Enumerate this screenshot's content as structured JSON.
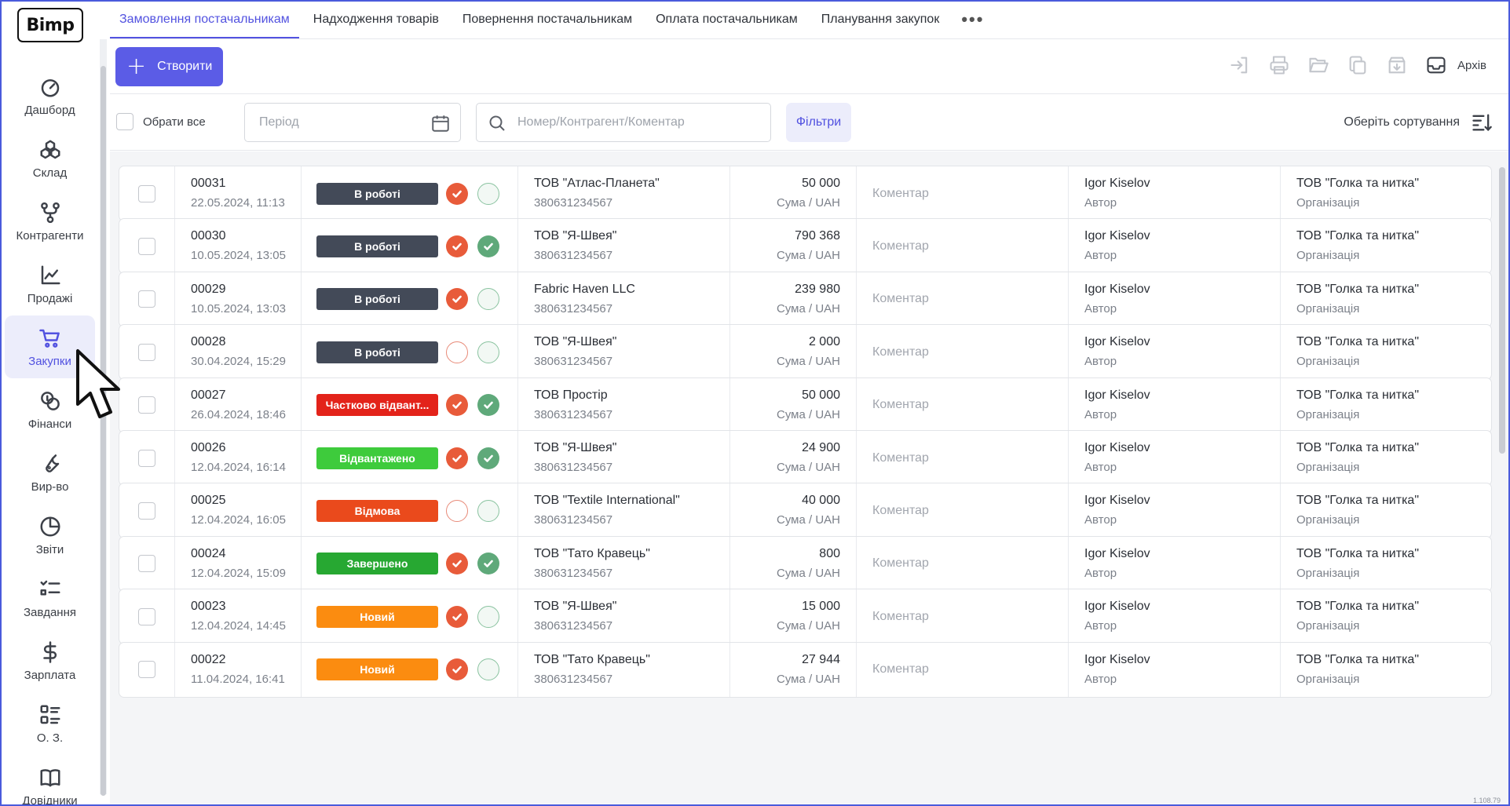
{
  "app": {
    "logo": "Bimp",
    "version": "1.108.79"
  },
  "sidebar": {
    "items": [
      {
        "label": "Дашборд",
        "icon": "gauge-icon",
        "active": false
      },
      {
        "label": "Склад",
        "icon": "boxes-icon",
        "active": false
      },
      {
        "label": "Контрагенти",
        "icon": "network-icon",
        "active": false
      },
      {
        "label": "Продажі",
        "icon": "chart-line-icon",
        "active": false
      },
      {
        "label": "Закупки",
        "icon": "cart-icon",
        "active": true
      },
      {
        "label": "Фінанси",
        "icon": "coins-icon",
        "active": false
      },
      {
        "label": "Вир-во",
        "icon": "wrench-icon",
        "active": false
      },
      {
        "label": "Звіти",
        "icon": "pie-chart-icon",
        "active": false
      },
      {
        "label": "Завдання",
        "icon": "tasks-icon",
        "active": false
      },
      {
        "label": "Зарплата",
        "icon": "dollar-icon",
        "active": false
      },
      {
        "label": "О. З.",
        "icon": "grid-list-icon",
        "active": false
      },
      {
        "label": "Довідники",
        "icon": "book-icon",
        "active": false
      }
    ]
  },
  "tabs": [
    {
      "label": "Замовлення постачальникам",
      "active": true
    },
    {
      "label": "Надходження товарів",
      "active": false
    },
    {
      "label": "Повернення постачальникам",
      "active": false
    },
    {
      "label": "Оплата постачальникам",
      "active": false
    },
    {
      "label": "Планування закупок",
      "active": false
    }
  ],
  "tabs_more": "•••",
  "toolbar": {
    "create_label": "Створити",
    "archive_label": "Архів"
  },
  "filters": {
    "select_all_label": "Обрати все",
    "period_placeholder": "Період",
    "search_placeholder": "Номер/Контрагент/Коментар",
    "filters_label": "Фільтри",
    "sort_label": "Оберіть сортування"
  },
  "labels": {
    "sum_label": "Сума",
    "currency": "UAH",
    "comment_placeholder": "Коментар",
    "author_label": "Автор",
    "org_label": "Організація"
  },
  "colors": {
    "accent": "#5b5ce6",
    "status_in_work": "#434a58",
    "status_partial": "#e3231a",
    "status_shipped": "#3ecb3c",
    "status_refused": "#ea4a1c",
    "status_done": "#27a832",
    "status_new": "#fb8c10"
  },
  "orders": [
    {
      "number": "00031",
      "date": "22.05.2024, 11:13",
      "status": "В роботі",
      "status_color": "#434a58",
      "ind1": true,
      "ind2": false,
      "counterparty": "ТОВ \"Атлас-Планета\"",
      "phone": "380631234567",
      "amount": "50 000",
      "author": "Igor Kiselov",
      "org": "ТОВ \"Голка та нитка\""
    },
    {
      "number": "00030",
      "date": "10.05.2024, 13:05",
      "status": "В роботі",
      "status_color": "#434a58",
      "ind1": true,
      "ind2": true,
      "counterparty": "ТОВ \"Я-Швея\"",
      "phone": "380631234567",
      "amount": "790 368",
      "author": "Igor Kiselov",
      "org": "ТОВ \"Голка та нитка\""
    },
    {
      "number": "00029",
      "date": "10.05.2024, 13:03",
      "status": "В роботі",
      "status_color": "#434a58",
      "ind1": true,
      "ind2": false,
      "counterparty": "Fabric Haven LLC",
      "phone": "380631234567",
      "amount": "239 980",
      "author": "Igor Kiselov",
      "org": "ТОВ \"Голка та нитка\""
    },
    {
      "number": "00028",
      "date": "30.04.2024, 15:29",
      "status": "В роботі",
      "status_color": "#434a58",
      "ind1": false,
      "ind2": false,
      "counterparty": "ТОВ \"Я-Швея\"",
      "phone": "380631234567",
      "amount": "2 000",
      "author": "Igor Kiselov",
      "org": "ТОВ \"Голка та нитка\""
    },
    {
      "number": "00027",
      "date": "26.04.2024, 18:46",
      "status": "Частково відвант...",
      "status_color": "#e3231a",
      "ind1": true,
      "ind2": true,
      "counterparty": "ТОВ Простір",
      "phone": "380631234567",
      "amount": "50 000",
      "author": "Igor Kiselov",
      "org": "ТОВ \"Голка та нитка\""
    },
    {
      "number": "00026",
      "date": "12.04.2024, 16:14",
      "status": "Відвантажено",
      "status_color": "#3ecb3c",
      "ind1": true,
      "ind2": true,
      "counterparty": "ТОВ \"Я-Швея\"",
      "phone": "380631234567",
      "amount": "24 900",
      "author": "Igor Kiselov",
      "org": "ТОВ \"Голка та нитка\""
    },
    {
      "number": "00025",
      "date": "12.04.2024, 16:05",
      "status": "Відмова",
      "status_color": "#ea4a1c",
      "ind1": false,
      "ind2": false,
      "counterparty": "ТОВ \"Textile International\"",
      "phone": "380631234567",
      "amount": "40 000",
      "author": "Igor Kiselov",
      "org": "ТОВ \"Голка та нитка\""
    },
    {
      "number": "00024",
      "date": "12.04.2024, 15:09",
      "status": "Завершено",
      "status_color": "#27a832",
      "ind1": true,
      "ind2": true,
      "counterparty": "ТОВ \"Тато Кравець\"",
      "phone": "380631234567",
      "amount": "800",
      "author": "Igor Kiselov",
      "org": "ТОВ \"Голка та нитка\""
    },
    {
      "number": "00023",
      "date": "12.04.2024, 14:45",
      "status": "Новий",
      "status_color": "#fb8c10",
      "ind1": true,
      "ind2": false,
      "counterparty": "ТОВ \"Я-Швея\"",
      "phone": "380631234567",
      "amount": "15 000",
      "author": "Igor Kiselov",
      "org": "ТОВ \"Голка та нитка\""
    },
    {
      "number": "00022",
      "date": "11.04.2024, 16:41",
      "status": "Новий",
      "status_color": "#fb8c10",
      "ind1": true,
      "ind2": false,
      "counterparty": "ТОВ \"Тато Кравець\"",
      "phone": "380631234567",
      "amount": "27 944",
      "author": "Igor Kiselov",
      "org": "ТОВ \"Голка та нитка\""
    }
  ]
}
